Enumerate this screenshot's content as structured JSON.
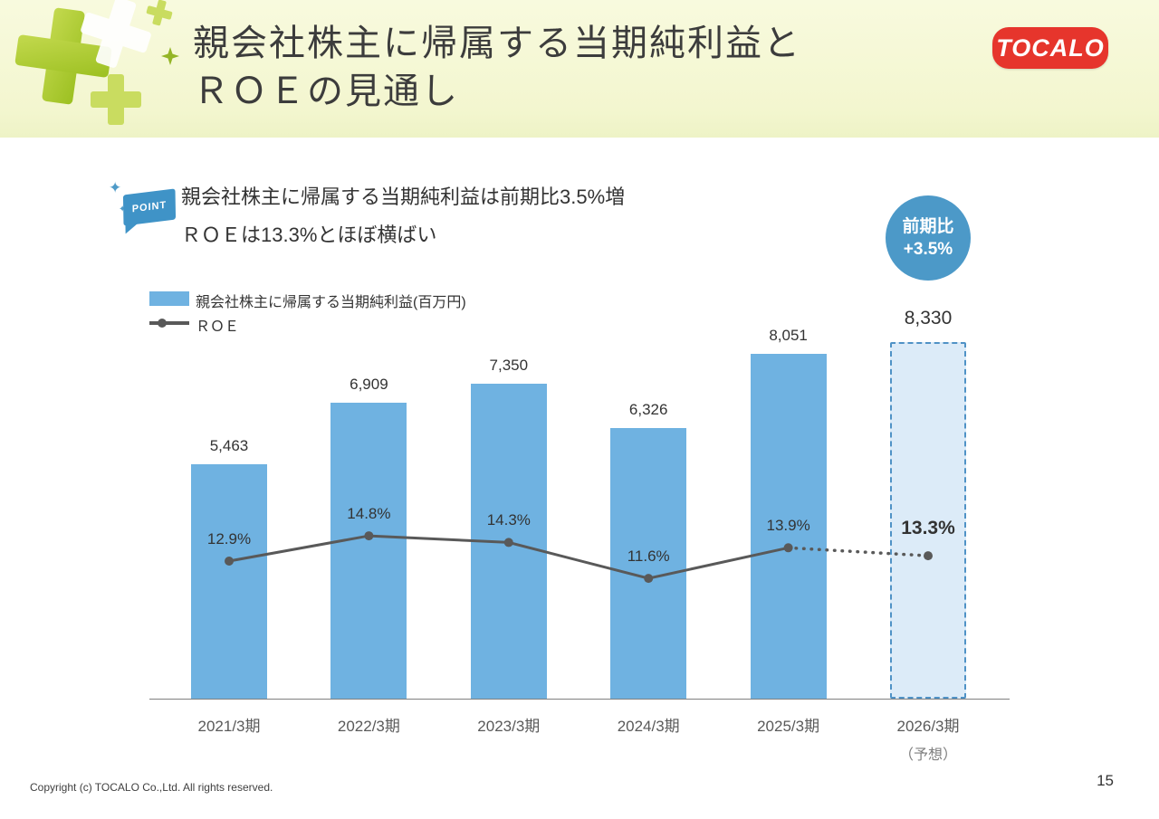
{
  "header": {
    "title_line1": "親会社株主に帰属する当期純利益と",
    "title_line2": "ＲＯＥの見通し",
    "logo_text": "TOCALO"
  },
  "point": {
    "badge_label": "POINT",
    "line1": "親会社株主に帰属する当期純利益は前期比3.5%増",
    "line2": "ＲＯＥは13.3%とほぼ横ばい"
  },
  "highlight_badge": {
    "line1": "前期比",
    "line2": "+3.5%"
  },
  "legend": {
    "bar_label": "親会社株主に帰属する当期純利益(百万円)",
    "line_label": "ＲＯＥ"
  },
  "chart_data": {
    "type": "bar+line",
    "title": "親会社株主に帰属する当期純利益とＲＯＥの見通し",
    "categories": [
      "2021/3期",
      "2022/3期",
      "2023/3期",
      "2024/3期",
      "2025/3期",
      "2026/3期"
    ],
    "category_note": {
      "index": 5,
      "label": "（予想）"
    },
    "forecast_index": 5,
    "series": [
      {
        "name": "親会社株主に帰属する当期純利益(百万円)",
        "type": "bar",
        "values": [
          5463,
          6909,
          7350,
          6326,
          8051,
          8330
        ],
        "labels": [
          "5,463",
          "6,909",
          "7,350",
          "6,326",
          "8,051",
          "8,330"
        ]
      },
      {
        "name": "ＲＯＥ",
        "type": "line",
        "values": [
          12.9,
          14.8,
          14.3,
          11.6,
          13.9,
          13.3
        ],
        "labels": [
          "12.9%",
          "14.8%",
          "14.3%",
          "11.6%",
          "13.9%",
          "13.3%"
        ]
      }
    ],
    "ylim_bar": [
      0,
      9000
    ],
    "legend_position": "top-left",
    "grid": false,
    "colors": {
      "bar": "#6fb2e1",
      "forecast_bar_fill": "#dcebf8",
      "forecast_bar_border": "#4f92c6",
      "line": "#595959"
    }
  },
  "footer": {
    "copyright": "Copyright (c) TOCALO Co.,Ltd. All rights reserved.",
    "page_number": "15"
  }
}
